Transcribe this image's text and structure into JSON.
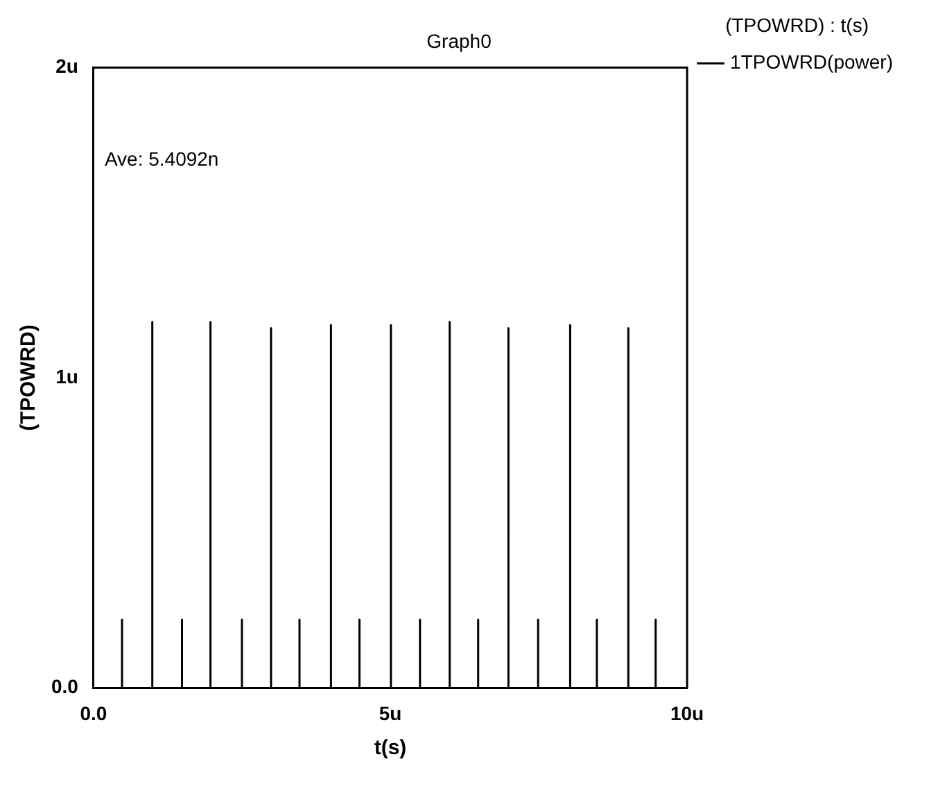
{
  "chart_data": {
    "type": "line",
    "title": "Graph0",
    "xlabel": "t(s)",
    "ylabel": "(TPOWRD)",
    "legend_title": "(TPOWRD) : t(s)",
    "legend": "top right",
    "grid": false,
    "marker": "none",
    "line_style": "solid",
    "xlim": [
      0,
      10
    ],
    "xticks": [
      {
        "value": 0,
        "label": "0.0"
      },
      {
        "value": 5,
        "label": "5u"
      },
      {
        "value": 10,
        "label": "10u"
      }
    ],
    "ylim": [
      0,
      2
    ],
    "yticks": [
      {
        "value": 0,
        "label": "0.0"
      },
      {
        "value": 1,
        "label": "1u"
      },
      {
        "value": 2,
        "label": "2u"
      }
    ],
    "annotations": [
      "Ave: 5.4092n"
    ],
    "series": [
      {
        "name": "1TPOWRD(power)",
        "color": "#000000",
        "x": [
          0,
          0.48,
          0.48,
          0.48,
          0.99,
          0.99,
          0.99,
          1.49,
          1.49,
          1.49,
          1.97,
          1.97,
          1.97,
          2.5,
          2.5,
          2.5,
          2.99,
          2.99,
          2.99,
          3.47,
          3.47,
          3.47,
          4.0,
          4.0,
          4.0,
          4.48,
          4.48,
          4.48,
          5.01,
          5.01,
          5.01,
          5.5,
          5.5,
          5.5,
          6.0,
          6.0,
          6.0,
          6.48,
          6.48,
          6.48,
          6.99,
          6.99,
          6.99,
          7.49,
          7.49,
          7.49,
          8.03,
          8.03,
          8.03,
          8.48,
          8.48,
          8.48,
          9.01,
          9.01,
          9.01,
          9.47,
          9.47,
          9.47,
          10
        ],
        "values": [
          0,
          0,
          0.22,
          0,
          0,
          1.18,
          0,
          0,
          0.22,
          0,
          0,
          1.18,
          0,
          0,
          0.22,
          0,
          0,
          1.16,
          0,
          0,
          0.22,
          0,
          0,
          1.17,
          0,
          0,
          0.22,
          0,
          0,
          1.17,
          0,
          0,
          0.22,
          0,
          0,
          1.18,
          0,
          0,
          0.22,
          0,
          0,
          1.16,
          0,
          0,
          0.22,
          0,
          0,
          1.17,
          0,
          0,
          0.22,
          0,
          0,
          1.16,
          0,
          0,
          0.22,
          0,
          0
        ]
      }
    ]
  }
}
